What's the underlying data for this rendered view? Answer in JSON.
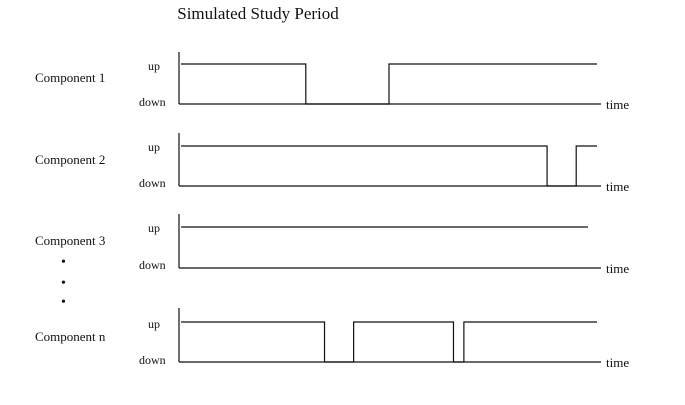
{
  "title": "Simulated Study Period",
  "state_up": "up",
  "state_down": "down",
  "axis_label": "time",
  "ellipsis": "•",
  "colors": {
    "ink": "#111111",
    "background": "#ffffff"
  },
  "components": [
    {
      "label": "Component 1",
      "downtimes": [
        [
          0.3,
          0.5
        ]
      ]
    },
    {
      "label": "Component 2",
      "downtimes": [
        [
          0.88,
          0.95
        ]
      ]
    },
    {
      "label": "Component 3",
      "downtimes": []
    },
    {
      "label": "Component n",
      "downtimes": [
        [
          0.345,
          0.415
        ],
        [
          0.655,
          0.68
        ]
      ]
    }
  ]
}
